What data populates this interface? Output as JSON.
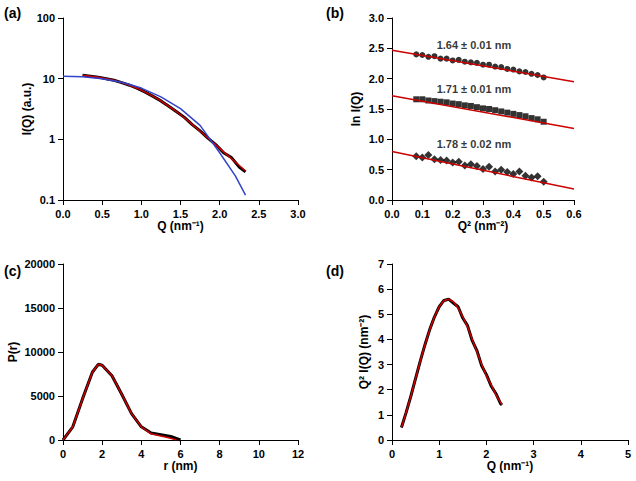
{
  "chart_data": [
    {
      "type": "line",
      "panel_label": "(a)",
      "x_label": "Q (nm⁻¹)",
      "y_label": "I(Q) (a.u.)",
      "log": "y",
      "grid": false,
      "xlim": [
        0,
        3
      ],
      "xticks": [
        {
          "value": 0,
          "label": "0.0"
        },
        0.5,
        {
          "value": 1,
          "label": "1.0"
        },
        1.5,
        {
          "value": 2,
          "label": "2.0"
        },
        2.5,
        {
          "value": 3,
          "label": "3.0"
        }
      ],
      "ylim": [
        0.1,
        100
      ],
      "yticks": [
        0.1,
        1,
        10,
        100
      ],
      "series": [
        {
          "color": "#000000",
          "line_style": "solid",
          "x": [
            0.25,
            0.35,
            0.45,
            0.55,
            0.65,
            0.75,
            0.85,
            0.95,
            1.05,
            1.15,
            1.25,
            1.35,
            1.45,
            1.55,
            1.65,
            1.75,
            1.85,
            1.95,
            2.05,
            2.15,
            2.25,
            2.33
          ],
          "values": [
            11.4,
            11.0,
            10.6,
            10.0,
            9.4,
            8.6,
            7.8,
            6.9,
            6.0,
            5.1,
            4.3,
            3.5,
            2.85,
            2.3,
            1.75,
            1.38,
            1.05,
            0.82,
            0.6,
            0.5,
            0.35,
            0.29
          ]
        },
        {
          "color": "#cc0000",
          "line_style": "solid",
          "x": [
            0.25,
            0.35,
            0.45,
            0.55,
            0.65,
            0.75,
            0.85,
            0.95,
            1.05,
            1.15,
            1.25,
            1.35,
            1.45,
            1.55,
            1.65,
            1.75,
            1.85,
            1.95,
            2.05,
            2.15,
            2.25,
            2.33
          ],
          "values": [
            11.4,
            11.0,
            10.6,
            10.0,
            9.4,
            8.6,
            7.8,
            6.9,
            6.0,
            5.1,
            4.3,
            3.5,
            2.85,
            2.27,
            1.76,
            1.36,
            1.05,
            0.81,
            0.62,
            0.48,
            0.37,
            0.3
          ]
        },
        {
          "color": "#3344cc",
          "line_style": "solid",
          "x": [
            0,
            0.25,
            0.5,
            0.75,
            1.0,
            1.25,
            1.5,
            1.75,
            2.0,
            2.2,
            2.33
          ],
          "values": [
            11.0,
            10.8,
            10.0,
            8.7,
            7.0,
            5.0,
            3.2,
            1.7,
            0.6,
            0.25,
            0.12
          ]
        }
      ]
    },
    {
      "type": "scatter",
      "panel_label": "(b)",
      "x_label": "Q² (nm⁻²)",
      "y_label": "ln I(Q)",
      "grid": false,
      "xlim": [
        0,
        0.6
      ],
      "xticks": [
        {
          "value": 0,
          "label": "0.0"
        },
        0.1,
        0.2,
        0.3,
        0.4,
        0.5,
        0.6
      ],
      "ylim": [
        0,
        3
      ],
      "yticks": [
        {
          "value": 0,
          "label": "0.0"
        },
        0.5,
        {
          "value": 1,
          "label": "1.0"
        },
        1.5,
        {
          "value": 2,
          "label": "2.0"
        },
        2.5,
        {
          "value": 3,
          "label": "3.0"
        }
      ],
      "annotations": [
        {
          "text": "1.64 ± 0.01 nm",
          "x": 0.27,
          "y": 2.55
        },
        {
          "text": "1.71 ± 0.01 nm",
          "x": 0.27,
          "y": 1.83
        },
        {
          "text": "1.78 ± 0.02 nm",
          "x": 0.27,
          "y": 0.92
        }
      ],
      "series": [
        {
          "type": "scatter",
          "color": "#000000",
          "marker": "circle",
          "x": [
            0.08,
            0.1,
            0.12,
            0.14,
            0.16,
            0.18,
            0.2,
            0.22,
            0.24,
            0.26,
            0.28,
            0.3,
            0.32,
            0.34,
            0.36,
            0.38,
            0.4,
            0.42,
            0.44,
            0.46,
            0.48,
            0.5
          ],
          "values": [
            2.4,
            2.39,
            2.36,
            2.37,
            2.33,
            2.33,
            2.3,
            2.31,
            2.28,
            2.27,
            2.26,
            2.23,
            2.23,
            2.2,
            2.19,
            2.16,
            2.15,
            2.12,
            2.11,
            2.08,
            2.06,
            2.02
          ]
        },
        {
          "type": "scatter",
          "color": "#000000",
          "marker": "square",
          "x": [
            0.08,
            0.1,
            0.12,
            0.14,
            0.16,
            0.18,
            0.2,
            0.22,
            0.24,
            0.26,
            0.28,
            0.3,
            0.32,
            0.34,
            0.36,
            0.38,
            0.4,
            0.42,
            0.44,
            0.46,
            0.48,
            0.5
          ],
          "values": [
            1.66,
            1.66,
            1.64,
            1.63,
            1.62,
            1.61,
            1.59,
            1.58,
            1.56,
            1.55,
            1.53,
            1.51,
            1.5,
            1.48,
            1.46,
            1.44,
            1.42,
            1.4,
            1.38,
            1.35,
            1.33,
            1.29
          ]
        },
        {
          "type": "scatter",
          "color": "#000000",
          "marker": "diamond",
          "x": [
            0.08,
            0.1,
            0.12,
            0.14,
            0.16,
            0.18,
            0.2,
            0.22,
            0.24,
            0.26,
            0.28,
            0.3,
            0.32,
            0.34,
            0.36,
            0.38,
            0.4,
            0.42,
            0.44,
            0.46,
            0.48,
            0.5
          ],
          "values": [
            0.72,
            0.7,
            0.74,
            0.67,
            0.66,
            0.65,
            0.62,
            0.63,
            0.57,
            0.59,
            0.56,
            0.51,
            0.55,
            0.47,
            0.5,
            0.46,
            0.43,
            0.47,
            0.4,
            0.37,
            0.39,
            0.3
          ]
        },
        {
          "type": "line",
          "color": "#cc0000",
          "line_style": "solid",
          "x": [
            0,
            0.6
          ],
          "values": [
            2.47,
            1.95
          ]
        },
        {
          "type": "line",
          "color": "#cc0000",
          "line_style": "solid",
          "x": [
            0,
            0.6
          ],
          "values": [
            1.72,
            1.18
          ]
        },
        {
          "type": "line",
          "color": "#cc0000",
          "line_style": "solid",
          "x": [
            0,
            0.6
          ],
          "values": [
            0.8,
            0.18
          ]
        }
      ]
    },
    {
      "type": "line",
      "panel_label": "(c)",
      "x_label": "r (nm)",
      "y_label": "P(r)",
      "grid": false,
      "xlim": [
        0,
        12
      ],
      "xticks": [
        0,
        2,
        4,
        6,
        8,
        10,
        12
      ],
      "ylim": [
        0,
        20000
      ],
      "yticks": [
        0,
        5000,
        10000,
        15000,
        20000
      ],
      "series": [
        {
          "color": "#000000",
          "line_style": "solid",
          "x": [
            0,
            0.5,
            1.0,
            1.5,
            1.8,
            2.0,
            2.5,
            3.0,
            3.5,
            4.0,
            4.5,
            5.0,
            5.5,
            6.0
          ],
          "values": [
            0,
            1500,
            4700,
            7700,
            8600,
            8500,
            7300,
            5200,
            3000,
            1500,
            800,
            600,
            400,
            0
          ]
        },
        {
          "color": "#cc0000",
          "line_style": "solid",
          "x": [
            0,
            0.5,
            1.0,
            1.5,
            1.8,
            2.0,
            2.5,
            3.0,
            3.5,
            4.0,
            4.5,
            5.0,
            5.5,
            5.8
          ],
          "values": [
            0,
            1500,
            4700,
            7700,
            8600,
            8500,
            7300,
            5200,
            3000,
            1500,
            700,
            450,
            200,
            0
          ]
        }
      ]
    },
    {
      "type": "line",
      "panel_label": "(d)",
      "x_label": "Q (nm⁻¹)",
      "y_label": "Q² I(Q) (nm⁻²)",
      "grid": false,
      "xlim": [
        0,
        5
      ],
      "xticks": [
        0,
        1,
        2,
        3,
        4,
        5
      ],
      "ylim": [
        0,
        7
      ],
      "yticks": [
        0,
        1,
        2,
        3,
        4,
        5,
        6,
        7
      ],
      "series": [
        {
          "color": "#000000",
          "line_style": "solid",
          "x": [
            0.2,
            0.3,
            0.4,
            0.5,
            0.6,
            0.7,
            0.8,
            0.9,
            1.0,
            1.1,
            1.2,
            1.3,
            1.4,
            1.5,
            1.6,
            1.7,
            1.8,
            1.9,
            2.0,
            2.1,
            2.2,
            2.3,
            2.33
          ],
          "values": [
            0.5,
            1.1,
            1.75,
            2.45,
            3.15,
            3.8,
            4.4,
            4.9,
            5.3,
            5.55,
            5.6,
            5.45,
            5.3,
            4.85,
            4.55,
            3.95,
            3.55,
            2.95,
            2.6,
            2.15,
            1.85,
            1.45,
            1.4
          ]
        },
        {
          "color": "#cc0000",
          "line_style": "solid",
          "x": [
            0.2,
            0.3,
            0.4,
            0.5,
            0.6,
            0.7,
            0.8,
            0.9,
            1.0,
            1.1,
            1.2,
            1.3,
            1.4,
            1.5,
            1.6,
            1.7,
            1.8,
            1.9,
            2.0,
            2.1,
            2.2,
            2.3,
            2.33
          ],
          "values": [
            0.5,
            1.1,
            1.75,
            2.45,
            3.15,
            3.8,
            4.4,
            4.9,
            5.3,
            5.55,
            5.6,
            5.5,
            5.25,
            4.9,
            4.5,
            4.0,
            3.5,
            3.0,
            2.55,
            2.2,
            1.8,
            1.5,
            1.4
          ]
        }
      ]
    }
  ]
}
